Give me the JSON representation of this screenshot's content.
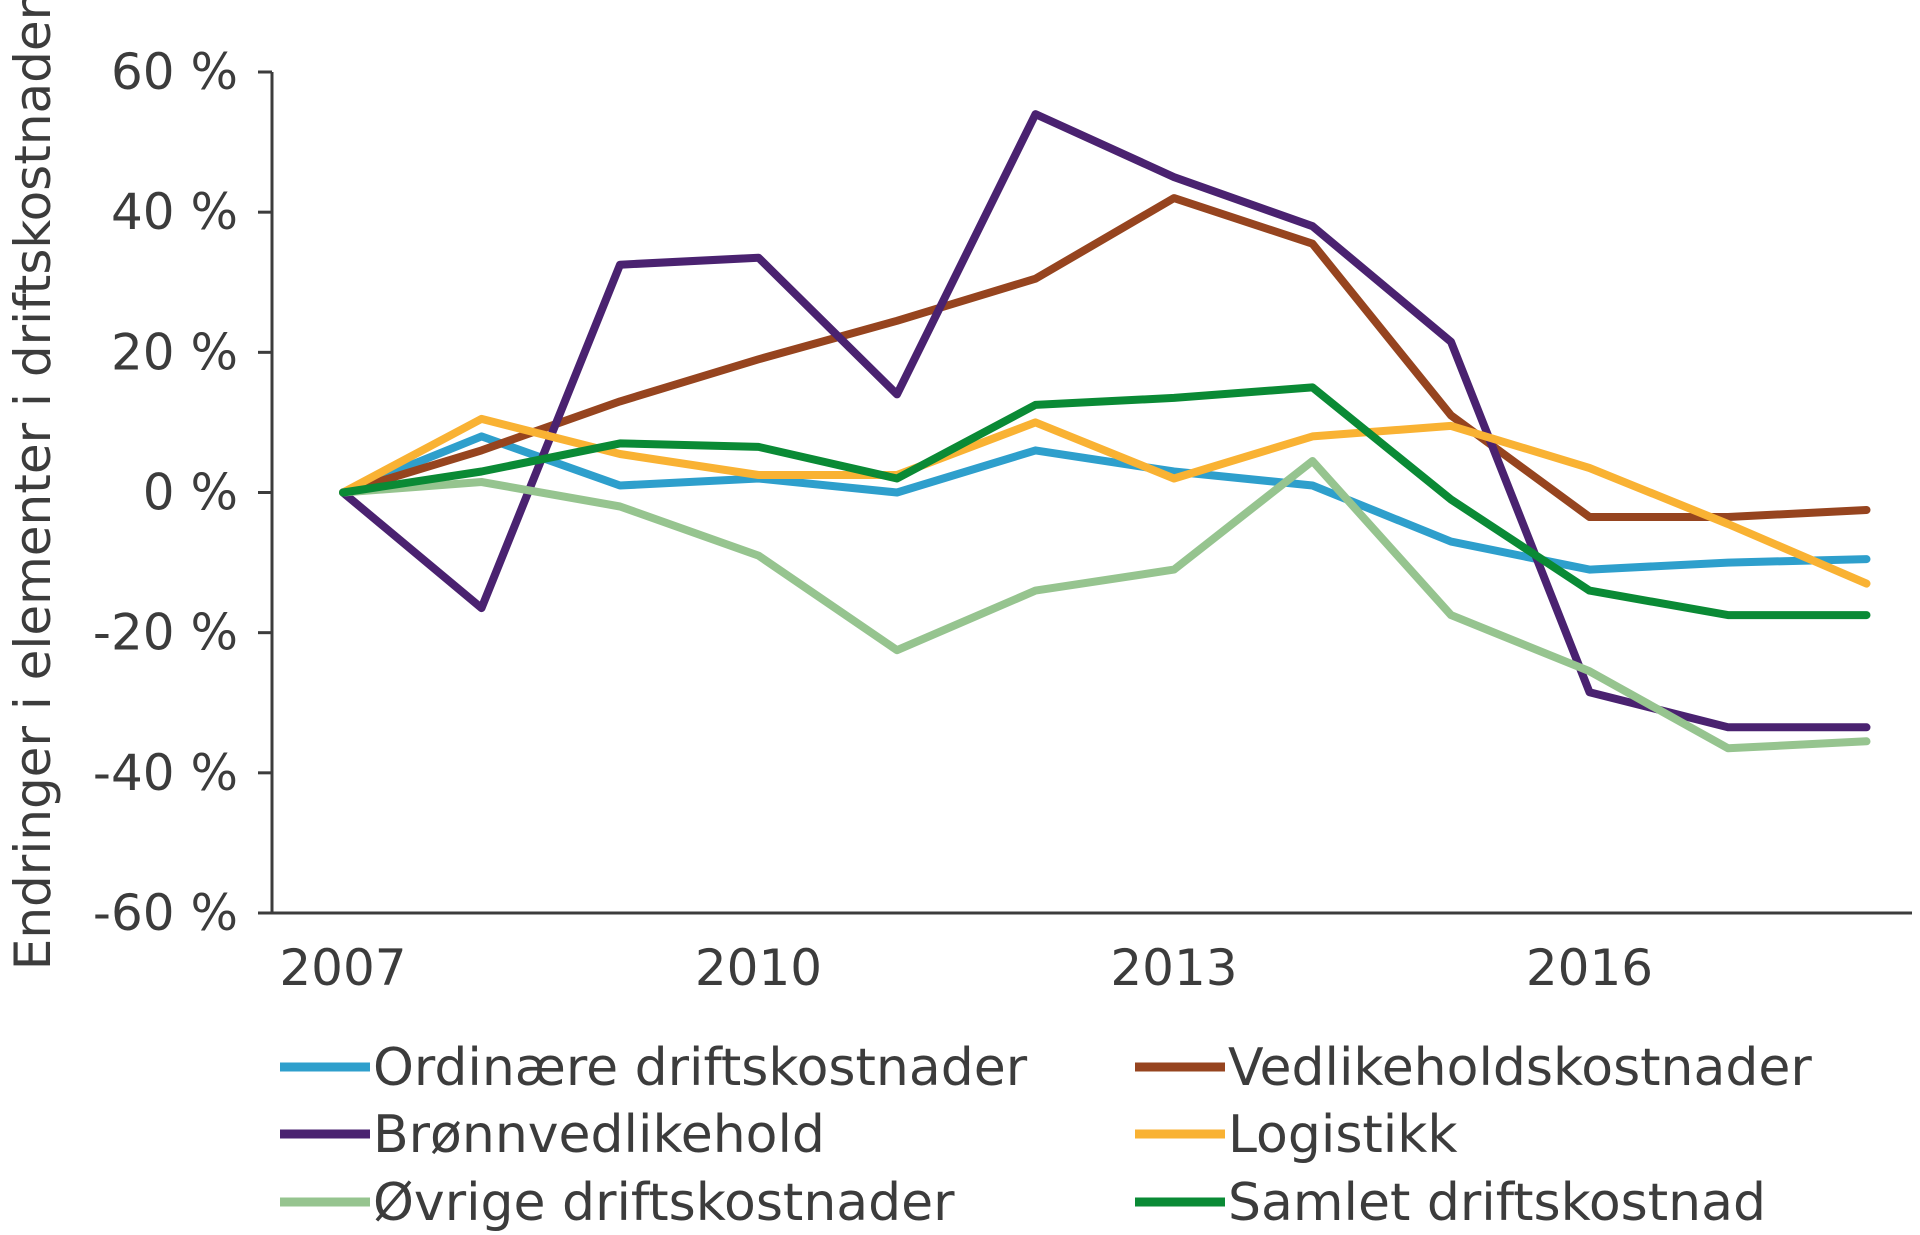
{
  "chart_data": {
    "type": "line",
    "title": "",
    "xlabel": "",
    "ylabel": "Endringer i elementer i driftskostnader",
    "x": [
      2007,
      2008,
      2009,
      2010,
      2011,
      2012,
      2013,
      2014,
      2015,
      2016,
      2017,
      2018
    ],
    "x_ticks": [
      {
        "value": 2007,
        "label": "2007"
      },
      {
        "value": 2010,
        "label": "2010"
      },
      {
        "value": 2013,
        "label": "2013"
      },
      {
        "value": 2016,
        "label": "2016"
      }
    ],
    "y_ticks": [
      {
        "value": 60,
        "label": "60 %"
      },
      {
        "value": 40,
        "label": "40 %"
      },
      {
        "value": 20,
        "label": "20 %"
      },
      {
        "value": 0,
        "label": "0 %"
      },
      {
        "value": -20,
        "label": "-20 %"
      },
      {
        "value": -40,
        "label": "-40 %"
      },
      {
        "value": -60,
        "label": "-60 %"
      }
    ],
    "ylim": [
      -60,
      60
    ],
    "xlim": [
      2006.5,
      2018.3
    ],
    "grid": false,
    "legend_position": "bottom",
    "series": [
      {
        "name": "Ordinære driftskostnader",
        "color": "#2e9fcc",
        "values": [
          0,
          8,
          1,
          2,
          0,
          6,
          3,
          1,
          -7,
          -11,
          -10,
          -9.5
        ]
      },
      {
        "name": "Vedlikeholdskostnader",
        "color": "#96441f",
        "values": [
          0,
          6,
          13,
          19,
          24.5,
          30.5,
          42,
          35.5,
          11,
          -3.5,
          -3.5,
          -2.5
        ]
      },
      {
        "name": "Brønnvedlikehold",
        "color": "#4a2270",
        "values": [
          0,
          -16.5,
          32.5,
          33.5,
          14,
          54,
          45,
          38,
          21.5,
          -28.5,
          -33.5,
          -33.5
        ]
      },
      {
        "name": "Logistikk",
        "color": "#f9b233",
        "values": [
          0,
          10.5,
          5.5,
          2.5,
          2.5,
          10,
          2,
          8,
          9.5,
          3.5,
          -4.5,
          -13
        ]
      },
      {
        "name": "Øvrige driftskostnader",
        "color": "#96c48f",
        "values": [
          0,
          1.5,
          -2,
          -9,
          -22.5,
          -14,
          -11,
          4.5,
          -17.5,
          -25.5,
          -36.5,
          -35.5
        ]
      },
      {
        "name": "Samlet driftskostnad",
        "color": "#0a8a35",
        "values": [
          0,
          3,
          7,
          6.5,
          2,
          12.5,
          13.5,
          15,
          -1,
          -14,
          -17.5,
          -17.5
        ]
      }
    ]
  }
}
